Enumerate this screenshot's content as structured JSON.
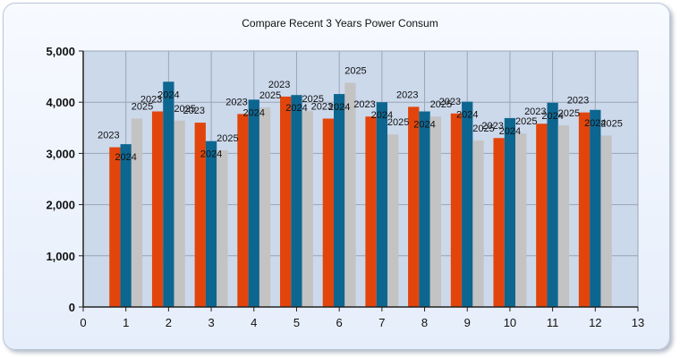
{
  "chart_data": {
    "type": "bar",
    "title": "Compare Recent 3 Years Power Consum",
    "xlabel": "",
    "ylabel": "",
    "x_ticks": [
      "0",
      "1",
      "2",
      "3",
      "4",
      "5",
      "6",
      "7",
      "8",
      "9",
      "10",
      "11",
      "12",
      "13"
    ],
    "y_ticks": [
      "0",
      "1,000",
      "2,000",
      "3,000",
      "4,000",
      "5,000"
    ],
    "xlim": [
      0,
      13
    ],
    "ylim": [
      0,
      5000
    ],
    "categories": [
      1,
      2,
      3,
      4,
      5,
      6,
      7,
      8,
      9,
      10,
      11,
      12
    ],
    "grid": true,
    "legend": "none",
    "series": [
      {
        "label": "2023",
        "color": "#e2450c",
        "values": [
          3120,
          3820,
          3600,
          3770,
          4110,
          3680,
          3720,
          3910,
          3780,
          3300,
          3580,
          3800
        ]
      },
      {
        "label": "2024",
        "color": "#0d6690",
        "values": [
          3180,
          4400,
          3240,
          4050,
          4140,
          4160,
          4000,
          3820,
          4010,
          3690,
          3990,
          3850
        ]
      },
      {
        "label": "2025",
        "color": "#c3c3c3",
        "values": [
          3680,
          3640,
          3060,
          3900,
          3830,
          4380,
          3370,
          3720,
          3250,
          3390,
          3550,
          3350
        ]
      }
    ]
  }
}
